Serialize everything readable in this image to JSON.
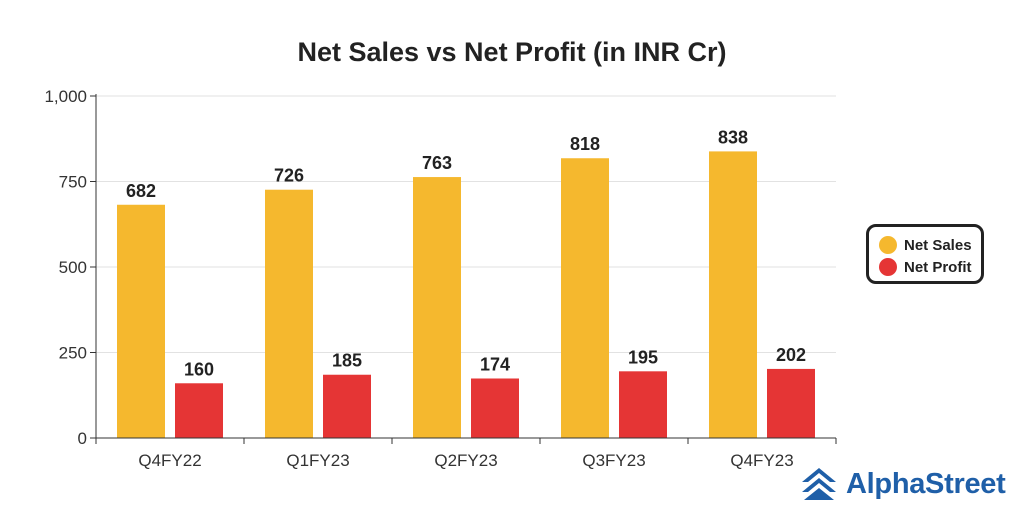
{
  "chart_data": {
    "type": "bar",
    "title": "Net Sales vs Net Profit (in INR Cr)",
    "categories": [
      "Q4FY22",
      "Q1FY23",
      "Q2FY23",
      "Q3FY23",
      "Q4FY23"
    ],
    "series": [
      {
        "name": "Net Sales",
        "values": [
          682,
          726,
          763,
          818,
          838
        ],
        "color": "#f5b82e"
      },
      {
        "name": "Net Profit",
        "values": [
          160,
          185,
          174,
          195,
          202
        ],
        "color": "#e53535"
      }
    ],
    "ylim": [
      0,
      1000
    ],
    "yticks": [
      0,
      250,
      500,
      750,
      1000
    ],
    "ytick_labels": [
      "0",
      "250",
      "500",
      "750",
      "1,000"
    ],
    "grid": true,
    "legend_position": "right"
  },
  "legend": {
    "items": [
      {
        "label": "Net Sales",
        "color": "#f5b82e"
      },
      {
        "label": "Net Profit",
        "color": "#e53535"
      }
    ]
  },
  "brand": {
    "name": "AlphaStreet",
    "icon": "alphastreet-logo-icon",
    "color": "#1f5fa8"
  }
}
